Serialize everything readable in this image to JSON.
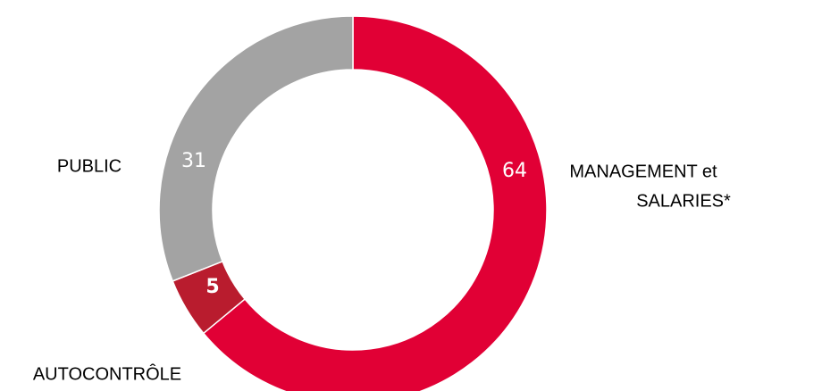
{
  "chart_data": {
    "type": "donut",
    "categories": [
      [
        "MANAGEMENT et",
        "SALARIES*"
      ],
      [
        "AUTOCONTRÔLE"
      ],
      [
        "PUBLIC"
      ]
    ],
    "values": [
      64,
      5,
      31
    ],
    "colors": [
      "#e10035",
      "#b91c2e",
      "#a3a3a3"
    ]
  }
}
